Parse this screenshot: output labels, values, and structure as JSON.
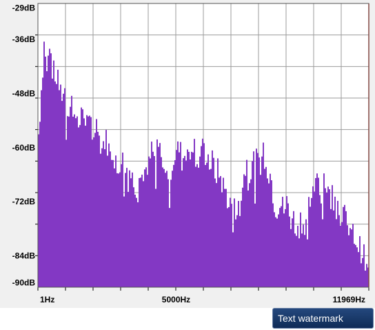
{
  "window": {
    "watermark_button": "Text watermark"
  },
  "colors": {
    "spectrum_fill": "#8338c4",
    "grid_line": "#9b9b9b",
    "cursor_line": "#e03020",
    "panel_bg": "#f0f0f0"
  },
  "chart_data": {
    "type": "area",
    "title": "",
    "xlabel": "",
    "ylabel": "",
    "grid": true,
    "xlim": [
      1,
      11969
    ],
    "ylim": [
      -91,
      -28
    ],
    "y_tick_labels": [
      {
        "value": -29,
        "label": "-29dB"
      },
      {
        "value": -36,
        "label": "-36dB"
      },
      {
        "value": -48,
        "label": "-48dB"
      },
      {
        "value": -60,
        "label": "-60dB"
      },
      {
        "value": -72,
        "label": "-72dB"
      },
      {
        "value": -84,
        "label": "-84dB"
      },
      {
        "value": -90,
        "label": "-90dB"
      }
    ],
    "x_tick_labels": [
      {
        "value": 1,
        "label": "1Hz"
      },
      {
        "value": 5000,
        "label": "5000Hz"
      },
      {
        "value": 11969,
        "label": "11969Hz"
      }
    ],
    "series": [
      {
        "x": [
          1,
          100,
          200,
          300,
          400,
          500,
          600,
          700,
          800,
          900,
          1000,
          1100,
          1200,
          1300,
          1400,
          1500,
          1600,
          1700,
          1800,
          1900,
          2000,
          2100,
          2200,
          2300,
          2400,
          2500,
          2600,
          2700,
          2800,
          2900,
          3000,
          3100,
          3200,
          3300,
          3400,
          3500,
          3600,
          3700,
          3800,
          3900,
          4000,
          4100,
          4200,
          4300,
          4400,
          4500,
          4600,
          4700,
          4800,
          4900,
          5000,
          5100,
          5200,
          5300,
          5400,
          5500,
          5600,
          5700,
          5800,
          5900,
          6000,
          6100,
          6200,
          6300,
          6400,
          6500,
          6600,
          6700,
          6800,
          6900,
          7000,
          7100,
          7200,
          7300,
          7400,
          7500,
          7600,
          7700,
          7800,
          7900,
          8000,
          8100,
          8200,
          8300,
          8400,
          8500,
          8600,
          8700,
          8800,
          8900,
          9000,
          9100,
          9200,
          9300,
          9400,
          9500,
          9600,
          9700,
          9800,
          9900,
          10000,
          10100,
          10200,
          10300,
          10400,
          10500,
          10600,
          10700,
          10800,
          10900,
          11000,
          11100,
          11200,
          11300,
          11400,
          11500,
          11600,
          11700,
          11800,
          11969
        ],
        "values": [
          -57,
          -47,
          -37,
          -40,
          -36,
          -42,
          -45,
          -43,
          -49,
          -47,
          -50,
          -53,
          -50,
          -52,
          -54,
          -55,
          -51,
          -53,
          -56,
          -54,
          -57,
          -55,
          -58,
          -60,
          -58,
          -59,
          -62,
          -60,
          -64,
          -63,
          -62,
          -64,
          -62,
          -65,
          -67,
          -68,
          -66,
          -67,
          -65,
          -67,
          -64,
          -60,
          -63,
          -58,
          -61,
          -63,
          -67,
          -65,
          -64,
          -62,
          -61,
          -60,
          -63,
          -61,
          -62,
          -60,
          -58,
          -62,
          -63,
          -60,
          -62,
          -61,
          -64,
          -63,
          -66,
          -65,
          -67,
          -69,
          -70,
          -73,
          -72,
          -70,
          -75,
          -71,
          -67,
          -64,
          -63,
          -62,
          -64,
          -63,
          -62,
          -61,
          -63,
          -65,
          -66,
          -71,
          -74,
          -72,
          -73,
          -74,
          -72,
          -76,
          -75,
          -78,
          -75,
          -76,
          -77,
          -75,
          -72,
          -70,
          -69,
          -67,
          -68,
          -66,
          -68,
          -70,
          -71,
          -69,
          -72,
          -73,
          -74,
          -76,
          -78,
          -80,
          -79,
          -81,
          -82,
          -83,
          -85,
          -90
        ]
      }
    ]
  }
}
